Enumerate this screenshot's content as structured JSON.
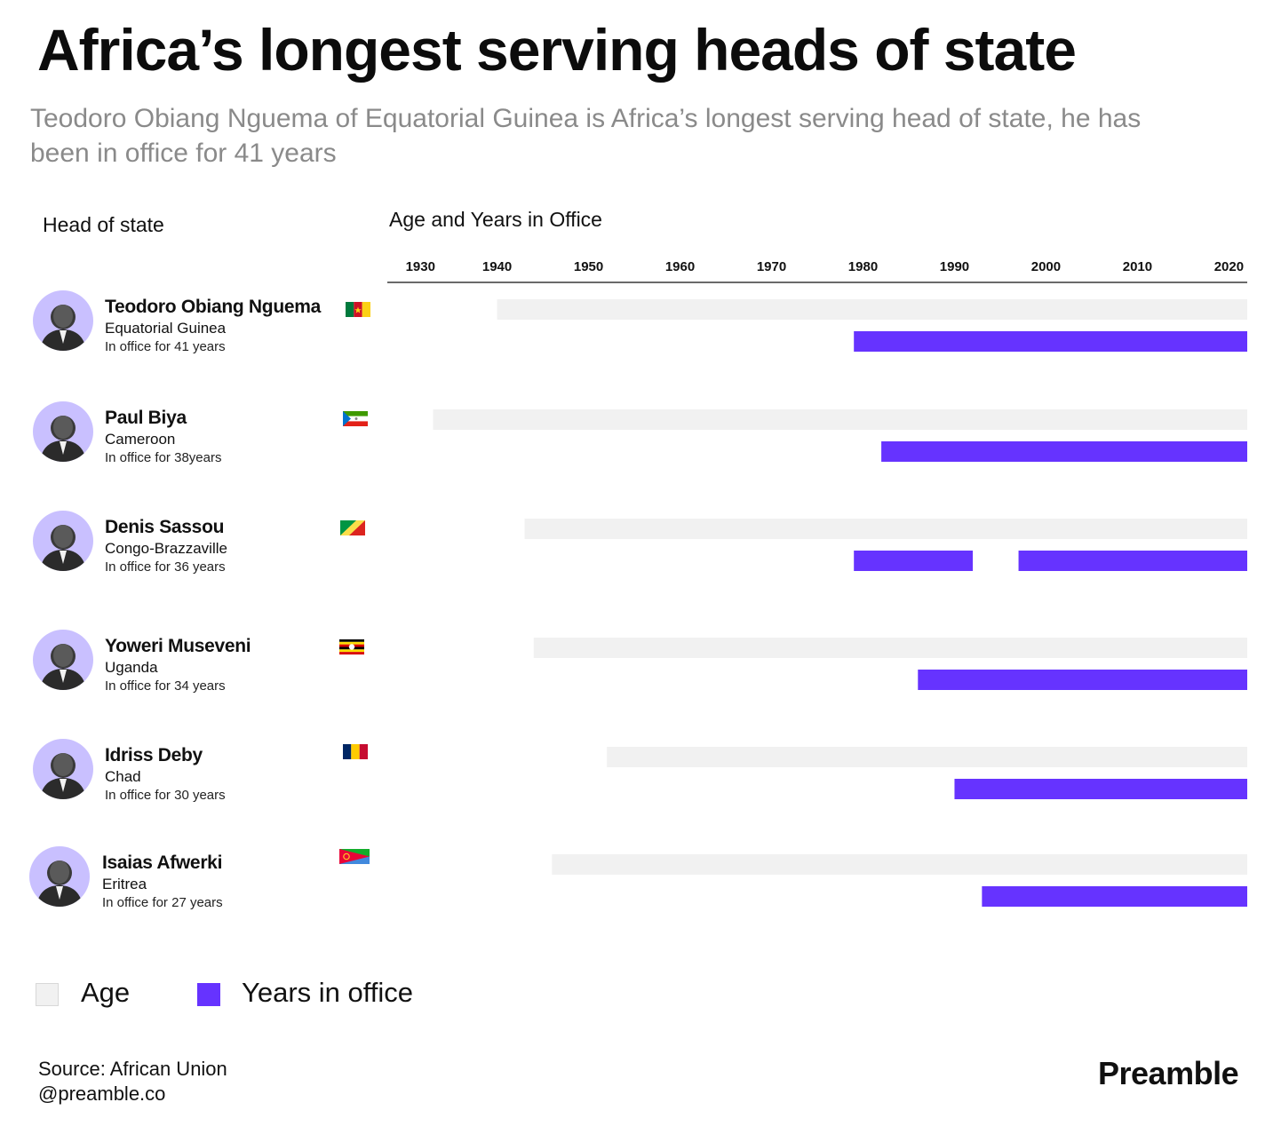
{
  "title": "Africa’s longest serving heads of state",
  "subtitle": "Teodoro Obiang Nguema of Equatorial Guinea is Africa’s longest serving head of state, he has been in office for 41 years",
  "column_headers": {
    "left": "Head of state",
    "right": "Age and Years in Office"
  },
  "colors": {
    "age_bar": "#f1f1f1",
    "office_bar": "#6633ff",
    "avatar_bg": "#c9c0ff"
  },
  "chart_data": {
    "type": "bar",
    "title": "Age and Years in Office",
    "x_ticks": [
      1930,
      1940,
      1950,
      1960,
      1970,
      1980,
      1990,
      2000,
      2010,
      2020
    ],
    "xlim": [
      1928,
      2022
    ],
    "series": [
      {
        "name": "Age"
      },
      {
        "name": "Years in office"
      }
    ],
    "leaders": [
      {
        "name": "Teodoro Obiang Nguema",
        "country": "Equatorial Guinea",
        "tenure_text": "In office for 41 years",
        "flag": "cameroon-flag-icon",
        "age_range": [
          1940,
          2022
        ],
        "office_ranges": [
          [
            1979,
            2022
          ]
        ]
      },
      {
        "name": "Paul Biya",
        "country": "Cameroon",
        "tenure_text": "In office for 38years",
        "flag": "equatorial-guinea-flag-icon",
        "age_range": [
          1933,
          2022
        ],
        "office_ranges": [
          [
            1982,
            2022
          ]
        ]
      },
      {
        "name": "Denis Sassou",
        "country": "Congo-Brazzaville",
        "tenure_text": "In office for 36 years",
        "flag": "congo-flag-icon",
        "age_range": [
          1943,
          2022
        ],
        "office_ranges": [
          [
            1979,
            1992
          ],
          [
            1997,
            2022
          ]
        ]
      },
      {
        "name": "Yoweri Museveni",
        "country": "Uganda",
        "tenure_text": "In office for 34 years",
        "flag": "uganda-flag-icon",
        "age_range": [
          1944,
          2022
        ],
        "office_ranges": [
          [
            1986,
            2022
          ]
        ]
      },
      {
        "name": "Idriss Deby",
        "country": "Chad",
        "tenure_text": "In office for 30 years",
        "flag": "chad-flag-icon",
        "age_range": [
          1952,
          2022
        ],
        "office_ranges": [
          [
            1990,
            2022
          ]
        ]
      },
      {
        "name": "Isaias Afwerki",
        "country": "Eritrea",
        "tenure_text": "In office for 27 years",
        "flag": "eritrea-flag-icon",
        "age_range": [
          1946,
          2022
        ],
        "office_ranges": [
          [
            1993,
            2022
          ]
        ]
      }
    ]
  },
  "legend": {
    "age_label": "Age",
    "office_label": "Years in office"
  },
  "footer": {
    "source": "Source: African Union",
    "handle": "@preamble.co",
    "brand": "Preamble"
  }
}
